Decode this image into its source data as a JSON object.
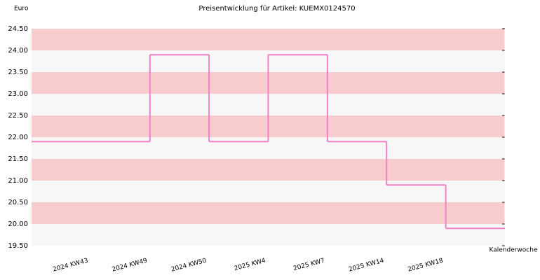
{
  "chart_data": {
    "type": "step",
    "title": "Preisentwicklung für Artikel: KUEMX0124570",
    "y_label": "Euro",
    "x_label": "Kalenderwoche",
    "categories": [
      "2024 KW43",
      "2024 KW49",
      "2024 KW50",
      "2025 KW4",
      "2025 KW7",
      "2025 KW14",
      "2025 KW18"
    ],
    "values": [
      21.9,
      23.9,
      21.9,
      23.9,
      21.9,
      20.9,
      19.9
    ],
    "color": "#f080c8",
    "band_colors": [
      "#f7f7f7",
      "#f8cccc"
    ],
    "ylim": [
      19.5,
      24.5
    ],
    "yticks": [
      {
        "value": 19.5,
        "label": "19.50"
      },
      {
        "value": 20,
        "label": "20.00"
      },
      {
        "value": 20.5,
        "label": "20.50"
      },
      {
        "value": 21,
        "label": "21.00"
      },
      {
        "value": 21.5,
        "label": "21.50"
      },
      {
        "value": 22,
        "label": "22.00"
      },
      {
        "value": 22.5,
        "label": "22.50"
      },
      {
        "value": 23,
        "label": "23.00"
      },
      {
        "value": 23.5,
        "label": "23.50"
      },
      {
        "value": 24,
        "label": "24.00"
      },
      {
        "value": 24.5,
        "label": "24.50"
      }
    ]
  }
}
